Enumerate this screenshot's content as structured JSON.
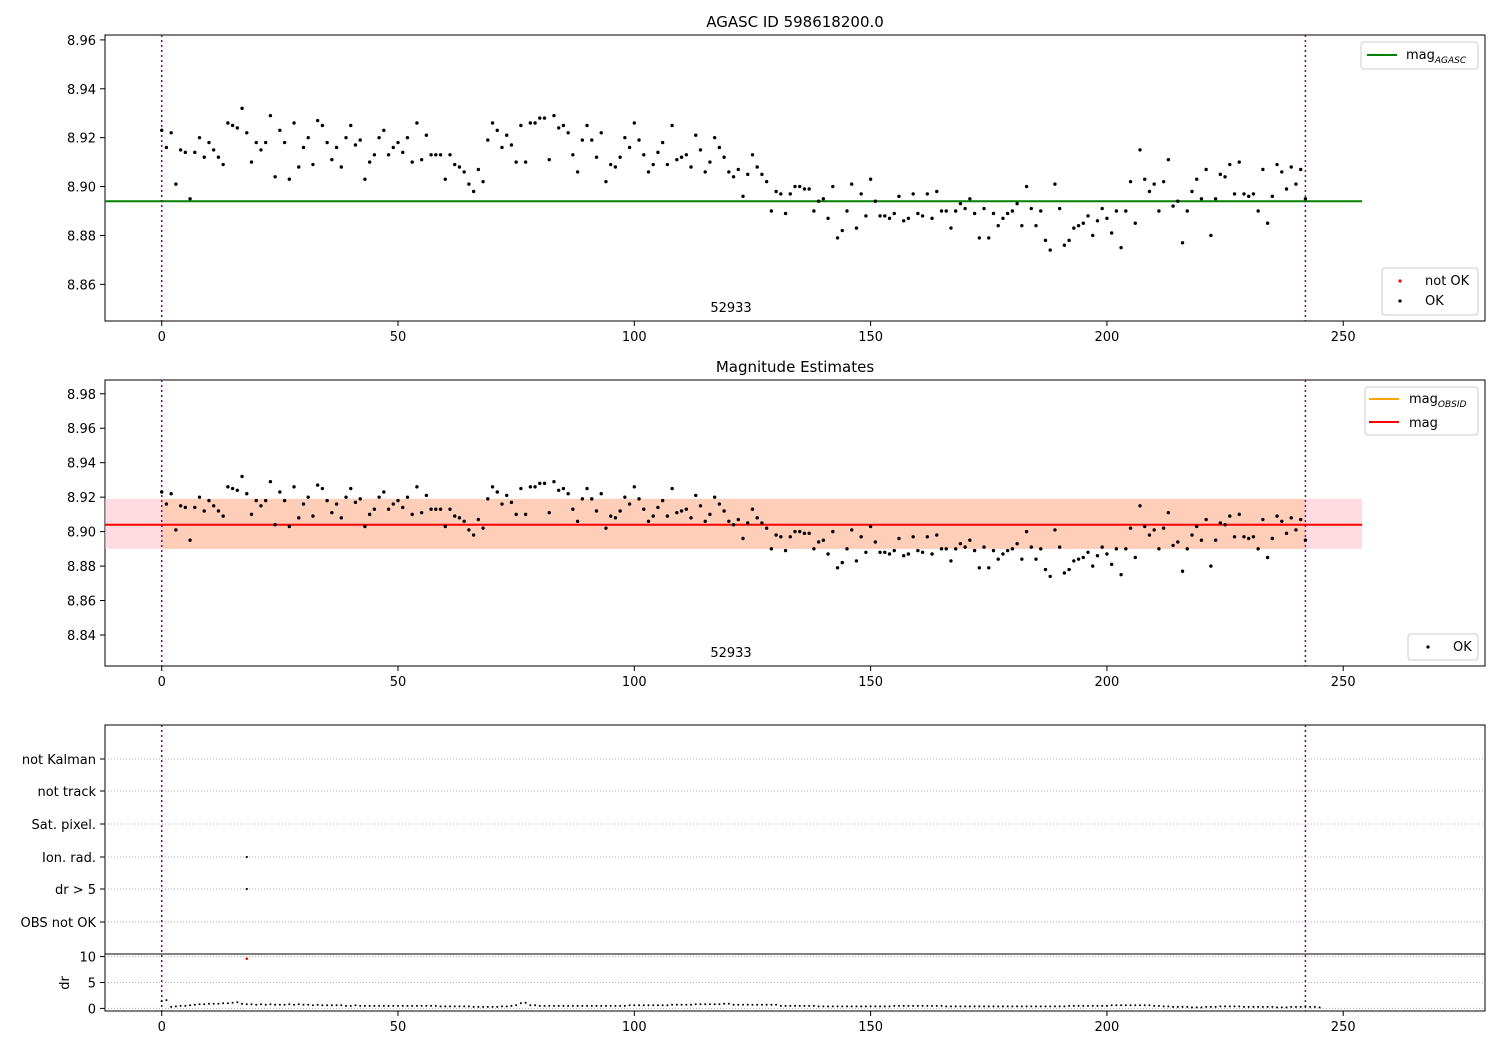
{
  "chart_data": [
    {
      "type": "scatter",
      "title": "AGASC ID 598618200.0",
      "annotation": "52933",
      "xlim": [
        -12,
        280
      ],
      "ylim": [
        8.845,
        8.962
      ],
      "x_ticks": [
        0,
        50,
        100,
        150,
        200,
        250
      ],
      "y_ticks": [
        8.86,
        8.88,
        8.9,
        8.92,
        8.94,
        8.96
      ],
      "y_tick_labels": [
        "8.86",
        "8.88",
        "8.90",
        "8.92",
        "8.94",
        "8.96"
      ],
      "vlines": [
        0,
        242
      ],
      "hline": {
        "name": "mag_AGASC",
        "value": 8.894,
        "x_range": [
          -12,
          254
        ],
        "color": "#008000"
      },
      "legend_lines": [
        {
          "name": "mag",
          "sub": "AGASC",
          "color": "#008000"
        }
      ],
      "legend_points": [
        {
          "name": "not OK",
          "color": "#ff0000"
        },
        {
          "name": "OK",
          "color": "#000000"
        }
      ],
      "series_ok_name": "OK"
    },
    {
      "type": "scatter",
      "title": "Magnitude Estimates",
      "annotation": "52933",
      "xlim": [
        -12,
        280
      ],
      "ylim": [
        8.822,
        8.988
      ],
      "x_ticks": [
        0,
        50,
        100,
        150,
        200,
        250
      ],
      "y_ticks": [
        8.84,
        8.86,
        8.88,
        8.9,
        8.92,
        8.94,
        8.96,
        8.98
      ],
      "y_tick_labels": [
        "8.84",
        "8.86",
        "8.88",
        "8.90",
        "8.92",
        "8.94",
        "8.96",
        "8.98"
      ],
      "vlines": [
        0,
        242
      ],
      "hline": {
        "name": "mag",
        "value": 8.904,
        "x_range": [
          -12,
          254
        ],
        "color": "#ff0000"
      },
      "band": {
        "low": 8.89,
        "high": 8.919,
        "x_range": [
          -12,
          254
        ]
      },
      "legend_lines": [
        {
          "name": "mag",
          "sub": "OBSID",
          "color": "#ffa500"
        },
        {
          "name": "mag",
          "sub": "",
          "color": "#ff0000"
        }
      ],
      "legend_points": [
        {
          "name": "OK",
          "color": "#000000"
        }
      ]
    },
    {
      "type": "scatter",
      "title": "",
      "xlim": [
        -12,
        280
      ],
      "flag_labels": [
        "not Kalman",
        "not track",
        "Sat. pixel.",
        "Ion. rad.",
        "dr > 5",
        "OBS not OK"
      ],
      "flag_points": [
        {
          "flag": "Ion. rad.",
          "x": 18
        },
        {
          "flag": "dr > 5",
          "x": 18
        }
      ],
      "dr_label": "dr",
      "dr_ylim": [
        -0.5,
        10.5
      ],
      "dr_ticks": [
        0,
        5,
        10
      ],
      "dr_tick_labels": [
        "0",
        "5",
        "10"
      ],
      "dr_outlier": {
        "x": 18,
        "y": 9.6
      },
      "x_ticks": [
        0,
        50,
        100,
        150,
        200,
        250
      ],
      "vlines": [
        0,
        242
      ]
    }
  ],
  "x_tick_labels": [
    "0",
    "50",
    "100",
    "150",
    "200",
    "250"
  ],
  "mag_series": [
    8.923,
    8.916,
    8.922,
    8.901,
    8.915,
    8.914,
    8.895,
    8.914,
    8.92,
    8.912,
    8.918,
    8.915,
    8.912,
    8.909,
    8.926,
    8.925,
    8.924,
    8.932,
    8.922,
    8.91,
    8.918,
    8.915,
    8.918,
    8.929,
    8.904,
    8.923,
    8.918,
    8.903,
    8.926,
    8.908,
    8.916,
    8.92,
    8.909,
    8.927,
    8.925,
    8.918,
    8.911,
    8.916,
    8.908,
    8.92,
    8.925,
    8.917,
    8.919,
    8.903,
    8.91,
    8.913,
    8.92,
    8.923,
    8.913,
    8.916,
    8.918,
    8.914,
    8.92,
    8.91,
    8.926,
    8.911,
    8.921,
    8.913,
    8.913,
    8.913,
    8.903,
    8.913,
    8.909,
    8.908,
    8.906,
    8.901,
    8.898,
    8.907,
    8.902,
    8.919,
    8.926,
    8.923,
    8.916,
    8.921,
    8.917,
    8.91,
    8.925,
    8.91,
    8.926,
    8.926,
    8.928,
    8.928,
    8.911,
    8.929,
    8.924,
    8.925,
    8.922,
    8.913,
    8.906,
    8.919,
    8.925,
    8.919,
    8.912,
    8.922,
    8.902,
    8.909,
    8.908,
    8.912,
    8.92,
    8.916,
    8.926,
    8.919,
    8.913,
    8.906,
    8.909,
    8.914,
    8.918,
    8.909,
    8.925,
    8.911,
    8.912,
    8.913,
    8.908,
    8.921,
    8.915,
    8.906,
    8.91,
    8.92,
    8.916,
    8.912,
    8.906,
    8.904,
    8.907,
    8.896,
    8.905,
    8.913,
    8.908,
    8.905,
    8.902,
    8.89,
    8.898,
    8.897,
    8.889,
    8.897,
    8.9,
    8.9,
    8.899,
    8.899,
    8.89,
    8.894,
    8.895,
    8.887,
    8.9,
    8.879,
    8.882,
    8.89,
    8.901,
    8.883,
    8.897,
    8.888,
    8.903,
    8.894,
    8.888,
    8.888,
    8.887,
    8.889,
    8.896,
    8.886,
    8.887,
    8.897,
    8.889,
    8.888,
    8.897,
    8.887,
    8.898,
    8.89,
    8.89,
    8.883,
    8.89,
    8.893,
    8.891,
    8.895,
    8.889,
    8.879,
    8.891,
    8.879,
    8.889,
    8.884,
    8.887,
    8.889,
    8.89,
    8.893,
    8.884,
    8.9,
    8.891,
    8.884,
    8.89,
    8.878,
    8.874,
    8.901,
    8.891,
    8.876,
    8.878,
    8.883,
    8.884,
    8.885,
    8.888,
    8.88,
    8.886,
    8.891,
    8.887,
    8.881,
    8.89,
    8.875,
    8.89,
    8.902,
    8.885,
    8.915,
    8.903,
    8.898,
    8.901,
    8.89,
    8.902,
    8.911,
    8.892,
    8.894,
    8.877,
    8.89,
    8.898,
    8.903,
    8.895,
    8.907,
    8.88,
    8.895,
    8.905,
    8.904,
    8.909,
    8.897,
    8.91,
    8.897,
    8.896,
    8.897,
    8.89,
    8.907,
    8.885,
    8.896,
    8.909,
    8.906,
    8.899,
    8.908,
    8.901,
    8.907,
    8.895
  ],
  "dr_series": [
    1.4,
    1.6,
    0.3,
    0.4,
    0.5,
    0.5,
    0.6,
    0.7,
    0.8,
    0.8,
    0.9,
    0.9,
    0.9,
    1.0,
    1.0,
    1.1,
    1.2,
    0.9,
    0.8,
    0.8,
    0.7,
    0.8,
    0.7,
    0.8,
    0.7,
    0.7,
    0.7,
    0.8,
    0.7,
    0.8,
    0.7,
    0.7,
    0.6,
    0.7,
    0.6,
    0.6,
    0.6,
    0.6,
    0.6,
    0.5,
    0.5,
    0.6,
    0.5,
    0.5,
    0.5,
    0.5,
    0.5,
    0.5,
    0.5,
    0.5,
    0.5,
    0.5,
    0.5,
    0.5,
    0.5,
    0.5,
    0.5,
    0.5,
    0.5,
    0.4,
    0.4,
    0.4,
    0.4,
    0.4,
    0.4,
    0.4,
    0.3,
    0.3,
    0.3,
    0.3,
    0.3,
    0.3,
    0.4,
    0.4,
    0.5,
    0.6,
    1.0,
    1.1,
    0.6,
    0.6,
    0.5,
    0.5,
    0.5,
    0.5,
    0.5,
    0.5,
    0.5,
    0.5,
    0.5,
    0.5,
    0.5,
    0.5,
    0.5,
    0.5,
    0.5,
    0.5,
    0.5,
    0.5,
    0.5,
    0.6,
    0.6,
    0.6,
    0.6,
    0.6,
    0.6,
    0.6,
    0.6,
    0.6,
    0.7,
    0.7,
    0.7,
    0.7,
    0.7,
    0.8,
    0.8,
    0.8,
    0.8,
    0.8,
    0.8,
    0.9,
    0.9,
    0.7,
    0.7,
    0.7,
    0.7,
    0.7,
    0.7,
    0.7,
    0.7,
    0.7,
    0.7,
    0.5,
    0.5,
    0.5,
    0.5,
    0.5,
    0.5,
    0.5,
    0.5,
    0.4,
    0.4,
    0.4,
    0.4,
    0.4,
    0.4,
    0.4,
    0.4,
    0.4,
    0.4,
    0.4,
    0.4,
    0.4,
    0.4,
    0.4,
    0.4,
    0.5,
    0.5,
    0.5,
    0.5,
    0.5,
    0.5,
    0.5,
    0.5,
    0.5,
    0.5,
    0.5,
    0.4,
    0.4,
    0.4,
    0.4,
    0.4,
    0.4,
    0.4,
    0.4,
    0.4,
    0.4,
    0.4,
    0.4,
    0.4,
    0.4,
    0.4,
    0.4,
    0.4,
    0.4,
    0.4,
    0.4,
    0.4,
    0.4,
    0.4,
    0.4,
    0.4,
    0.4,
    0.5,
    0.5,
    0.5,
    0.5,
    0.5,
    0.5,
    0.5,
    0.5,
    0.5,
    0.6,
    0.6,
    0.6,
    0.6,
    0.6,
    0.6,
    0.6,
    0.6,
    0.6,
    0.5,
    0.5,
    0.4,
    0.4,
    0.3,
    0.3,
    0.3,
    0.3,
    0.2,
    0.2,
    0.2,
    0.3,
    0.3,
    0.3,
    0.4,
    0.4,
    0.4,
    0.4,
    0.4,
    0.3,
    0.3,
    0.3,
    0.3,
    0.3,
    0.3,
    0.3,
    0.2,
    0.2,
    0.2,
    0.3,
    0.3,
    0.3,
    0.3,
    0.3,
    0.3,
    0.2
  ]
}
